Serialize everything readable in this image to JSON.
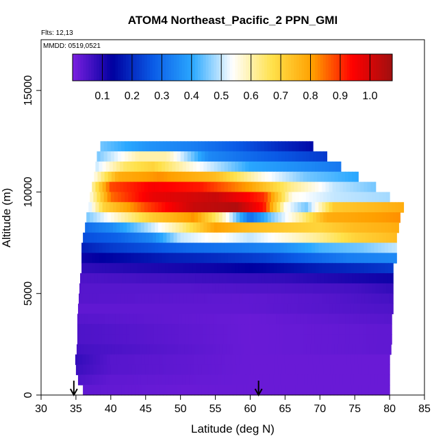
{
  "chart_data": {
    "type": "heatmap",
    "title": "ATOM4 Northeast_Pacific_2 PPN_GMI",
    "flights_note": "Flts: 12,13",
    "dates_note": "MMDD: 0519,0521",
    "xlabel": "Latitude (deg N)",
    "ylabel": "Altitude (m)",
    "xlim": [
      30,
      85
    ],
    "ylim": [
      0,
      17500
    ],
    "x_ticks": [
      30,
      35,
      40,
      45,
      50,
      55,
      60,
      65,
      70,
      75,
      80,
      85
    ],
    "y_ticks": [
      0,
      5000,
      10000,
      15000
    ],
    "colorbar": {
      "range": [
        0,
        1.075
      ],
      "ticks": [
        0.1,
        0.2,
        0.3,
        0.4,
        0.5,
        0.6,
        0.7,
        0.8,
        0.9,
        1.0
      ],
      "tick_labels": [
        "0.1",
        "0.2",
        "0.3",
        "0.4",
        "0.5",
        "0.6",
        "0.7",
        "0.8",
        "0.9",
        "1.0"
      ],
      "colors": [
        "#7b1fe0",
        "#0000a0",
        "#0a5ae6",
        "#2aa8ff",
        "#ffffff",
        "#ffe14a",
        "#ffa000",
        "#ff0000",
        "#a01010"
      ]
    },
    "arrows_lat": [
      34.7,
      61.2
    ],
    "rows": [
      {
        "alt_bottom": 12000,
        "alt_top": 12500,
        "lat_start": 38.5,
        "lat_end": 69,
        "knots": [
          [
            38.5,
            0.45
          ],
          [
            45,
            0.37
          ],
          [
            52,
            0.33
          ],
          [
            58,
            0.27
          ],
          [
            64,
            0.2
          ],
          [
            69,
            0.15
          ]
        ]
      },
      {
        "alt_bottom": 11500,
        "alt_top": 12000,
        "lat_start": 38,
        "lat_end": 71,
        "knots": [
          [
            38,
            0.45
          ],
          [
            44,
            0.6
          ],
          [
            48,
            0.6
          ],
          [
            54,
            0.35
          ],
          [
            62,
            0.28
          ],
          [
            71,
            0.22
          ]
        ]
      },
      {
        "alt_bottom": 11000,
        "alt_top": 11500,
        "lat_start": 37.8,
        "lat_end": 73,
        "knots": [
          [
            37.8,
            0.5
          ],
          [
            42,
            0.65
          ],
          [
            46,
            0.7
          ],
          [
            52,
            0.55
          ],
          [
            60,
            0.4
          ],
          [
            73,
            0.32
          ]
        ]
      },
      {
        "alt_bottom": 10500,
        "alt_top": 11000,
        "lat_start": 37.6,
        "lat_end": 75.5,
        "knots": [
          [
            37.6,
            0.55
          ],
          [
            41,
            0.78
          ],
          [
            47,
            0.82
          ],
          [
            55,
            0.75
          ],
          [
            62,
            0.55
          ],
          [
            68,
            0.45
          ],
          [
            75.5,
            0.4
          ]
        ]
      },
      {
        "alt_bottom": 10000,
        "alt_top": 10500,
        "lat_start": 37.3,
        "lat_end": 78,
        "knots": [
          [
            37.3,
            0.6
          ],
          [
            40,
            0.88
          ],
          [
            46,
            0.95
          ],
          [
            53,
            0.92
          ],
          [
            60,
            0.8
          ],
          [
            66,
            0.62
          ],
          [
            72,
            0.5
          ],
          [
            78,
            0.45
          ]
        ]
      },
      {
        "alt_bottom": 9500,
        "alt_top": 10000,
        "lat_start": 37,
        "lat_end": 80,
        "knots": [
          [
            37,
            0.55
          ],
          [
            40,
            0.85
          ],
          [
            46,
            0.97
          ],
          [
            55,
            1.02
          ],
          [
            62,
            0.9
          ],
          [
            66,
            0.55
          ],
          [
            72,
            0.5
          ],
          [
            80,
            0.48
          ]
        ]
      },
      {
        "alt_bottom": 9000,
        "alt_top": 9500,
        "lat_start": 36.8,
        "lat_end": 82,
        "knots": [
          [
            36.8,
            0.5
          ],
          [
            39,
            0.7
          ],
          [
            45,
            0.88
          ],
          [
            52,
            1.02
          ],
          [
            58,
            1.05
          ],
          [
            62,
            0.92
          ],
          [
            65,
            0.55
          ],
          [
            68,
            0.45
          ],
          [
            72,
            0.72
          ],
          [
            82,
            0.78
          ]
        ]
      },
      {
        "alt_bottom": 8500,
        "alt_top": 9000,
        "lat_start": 36.5,
        "lat_end": 81.5,
        "knots": [
          [
            36.5,
            0.45
          ],
          [
            40,
            0.55
          ],
          [
            46,
            0.72
          ],
          [
            52,
            0.82
          ],
          [
            56,
            0.6
          ],
          [
            60,
            0.3
          ],
          [
            63,
            0.45
          ],
          [
            67,
            0.6
          ],
          [
            71,
            0.78
          ],
          [
            81.5,
            0.82
          ]
        ]
      },
      {
        "alt_bottom": 8000,
        "alt_top": 8500,
        "lat_start": 36.3,
        "lat_end": 81.3,
        "knots": [
          [
            36.3,
            0.3
          ],
          [
            40,
            0.35
          ],
          [
            44,
            0.45
          ],
          [
            50,
            0.62
          ],
          [
            55,
            0.8
          ],
          [
            60,
            0.75
          ],
          [
            65,
            0.72
          ],
          [
            70,
            0.7
          ],
          [
            75,
            0.75
          ],
          [
            81.3,
            0.78
          ]
        ]
      },
      {
        "alt_bottom": 7500,
        "alt_top": 8000,
        "lat_start": 36,
        "lat_end": 81,
        "knots": [
          [
            36,
            0.25
          ],
          [
            41,
            0.28
          ],
          [
            46,
            0.35
          ],
          [
            50,
            0.5
          ],
          [
            55,
            0.55
          ],
          [
            60,
            0.5
          ],
          [
            64,
            0.55
          ],
          [
            70,
            0.62
          ],
          [
            75,
            0.7
          ],
          [
            81,
            0.75
          ]
        ]
      },
      {
        "alt_bottom": 7000,
        "alt_top": 7500,
        "lat_start": 35.8,
        "lat_end": 81,
        "knots": [
          [
            35.8,
            0.18
          ],
          [
            40,
            0.22
          ],
          [
            45,
            0.25
          ],
          [
            52,
            0.3
          ],
          [
            58,
            0.32
          ],
          [
            64,
            0.35
          ],
          [
            70,
            0.42
          ],
          [
            76,
            0.45
          ],
          [
            81,
            0.5
          ]
        ]
      },
      {
        "alt_bottom": 6500,
        "alt_top": 7000,
        "lat_start": 35.8,
        "lat_end": 81,
        "knots": [
          [
            35.8,
            0.12
          ],
          [
            42,
            0.15
          ],
          [
            48,
            0.18
          ],
          [
            55,
            0.2
          ],
          [
            62,
            0.23
          ],
          [
            68,
            0.28
          ],
          [
            74,
            0.33
          ],
          [
            81,
            0.35
          ]
        ]
      },
      {
        "alt_bottom": 6000,
        "alt_top": 6500,
        "lat_start": 35.8,
        "lat_end": 80.5,
        "knots": [
          [
            35.8,
            0.08
          ],
          [
            45,
            0.1
          ],
          [
            55,
            0.12
          ],
          [
            62,
            0.14
          ],
          [
            70,
            0.18
          ],
          [
            76,
            0.2
          ],
          [
            80.5,
            0.22
          ]
        ]
      },
      {
        "alt_bottom": 5500,
        "alt_top": 6000,
        "lat_start": 35.6,
        "lat_end": 80.5,
        "knots": [
          [
            35.6,
            0.05
          ],
          [
            45,
            0.06
          ],
          [
            55,
            0.07
          ],
          [
            65,
            0.08
          ],
          [
            72,
            0.1
          ],
          [
            80.5,
            0.12
          ]
        ]
      },
      {
        "alt_bottom": 5000,
        "alt_top": 5500,
        "lat_start": 35.5,
        "lat_end": 80.5,
        "knots": [
          [
            35.5,
            0.04
          ],
          [
            50,
            0.04
          ],
          [
            65,
            0.05
          ],
          [
            75,
            0.06
          ],
          [
            80.5,
            0.08
          ]
        ]
      },
      {
        "alt_bottom": 4500,
        "alt_top": 5000,
        "lat_start": 35.4,
        "lat_end": 80.5,
        "knots": [
          [
            35.4,
            0.04
          ],
          [
            60,
            0.03
          ],
          [
            70,
            0.04
          ],
          [
            80.5,
            0.06
          ]
        ]
      },
      {
        "alt_bottom": 4000,
        "alt_top": 4500,
        "lat_start": 35.3,
        "lat_end": 80.5,
        "knots": [
          [
            35.3,
            0.03
          ],
          [
            60,
            0.03
          ],
          [
            80.5,
            0.05
          ]
        ]
      },
      {
        "alt_bottom": 3500,
        "alt_top": 4000,
        "lat_start": 35.2,
        "lat_end": 80.3,
        "knots": [
          [
            35.2,
            0.04
          ],
          [
            60,
            0.02
          ],
          [
            80.3,
            0.04
          ]
        ]
      },
      {
        "alt_bottom": 3000,
        "alt_top": 3500,
        "lat_start": 35.2,
        "lat_end": 80.3,
        "knots": [
          [
            35.2,
            0.05
          ],
          [
            60,
            0.02
          ],
          [
            80.3,
            0.03
          ]
        ]
      },
      {
        "alt_bottom": 2500,
        "alt_top": 3000,
        "lat_start": 35.2,
        "lat_end": 80.3,
        "knots": [
          [
            35.2,
            0.05
          ],
          [
            60,
            0.02
          ],
          [
            80.3,
            0.03
          ]
        ]
      },
      {
        "alt_bottom": 2000,
        "alt_top": 2500,
        "lat_start": 35.1,
        "lat_end": 80.2,
        "knots": [
          [
            35.1,
            0.06
          ],
          [
            60,
            0.02
          ],
          [
            80.2,
            0.03
          ]
        ]
      },
      {
        "alt_bottom": 1500,
        "alt_top": 2000,
        "lat_start": 34.9,
        "lat_end": 80,
        "knots": [
          [
            34.9,
            0.08
          ],
          [
            40,
            0.04
          ],
          [
            60,
            0.02
          ],
          [
            80,
            0.02
          ]
        ]
      },
      {
        "alt_bottom": 1000,
        "alt_top": 1500,
        "lat_start": 35,
        "lat_end": 80,
        "knots": [
          [
            35,
            0.07
          ],
          [
            40,
            0.04
          ],
          [
            60,
            0.02
          ],
          [
            80,
            0.02
          ]
        ]
      },
      {
        "alt_bottom": 500,
        "alt_top": 1000,
        "lat_start": 35.3,
        "lat_end": 80,
        "knots": [
          [
            35.3,
            0.05
          ],
          [
            40,
            0.03
          ],
          [
            60,
            0.02
          ],
          [
            80,
            0.02
          ]
        ]
      },
      {
        "alt_bottom": 0,
        "alt_top": 500,
        "lat_start": 36,
        "lat_end": 80,
        "knots": [
          [
            36,
            0.03
          ],
          [
            50,
            0.02
          ],
          [
            80,
            0.02
          ]
        ]
      }
    ]
  }
}
